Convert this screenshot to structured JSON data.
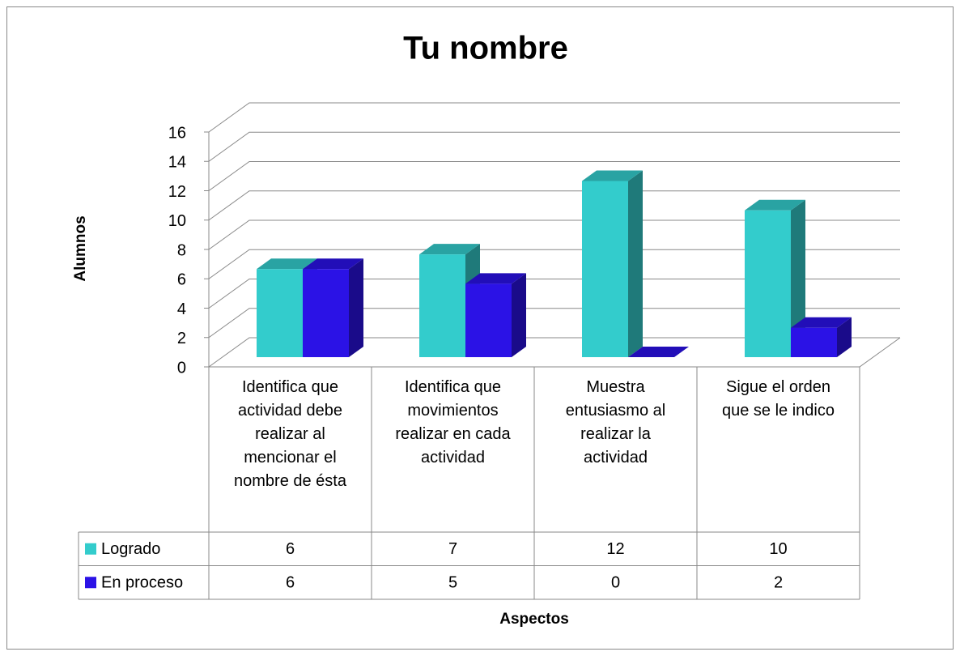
{
  "chart_data": {
    "type": "bar3d",
    "title": "Tu nombre",
    "y_label": "Alumnos",
    "x_label": "Aspectos",
    "categories": [
      "Identifica que actividad debe realizar al mencionar el nombre de ésta",
      "Identifica que movimientos realizar en cada actividad",
      "Muestra entusiasmo al realizar la actividad",
      "Sigue el orden que se le indico"
    ],
    "series": [
      {
        "name": "Logrado",
        "color": "#33CCCC",
        "values": [
          6,
          7,
          12,
          10
        ]
      },
      {
        "name": "En proceso",
        "color": "#2B12E6",
        "values": [
          6,
          5,
          0,
          2
        ]
      }
    ],
    "ylim": [
      0,
      16
    ],
    "yticks": [
      0,
      2,
      4,
      6,
      8,
      10,
      12,
      14,
      16
    ],
    "grid": true
  }
}
